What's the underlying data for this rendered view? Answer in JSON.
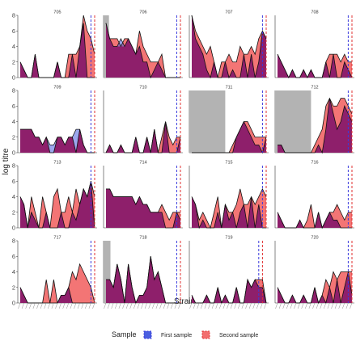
{
  "colors": {
    "first": "#4a5fe0",
    "second": "#f26e6e",
    "overlap": "#8e1f6b",
    "gray": "#b3b3b3",
    "first_line": "#3b3bdd",
    "second_line": "#e03030"
  },
  "chart_data": {
    "type": "area",
    "xlabel": "Strain",
    "ylabel": "log titre",
    "ylim": [
      0,
      8
    ],
    "yticks": [
      0,
      2,
      4,
      6,
      8
    ],
    "legend": {
      "title": "Sample",
      "placement": "bottom",
      "entries": [
        "First sample",
        "Second sample"
      ]
    },
    "n_strains": 21,
    "panels": [
      {
        "id": "705",
        "first": [
          2,
          1,
          0,
          0,
          3,
          0,
          0,
          0,
          0,
          0,
          2,
          0,
          0,
          0,
          3,
          0,
          4,
          7,
          0,
          0,
          0
        ],
        "second": [
          2,
          1,
          0,
          0,
          3,
          0,
          0,
          0,
          0,
          0,
          2,
          0,
          0,
          3,
          3,
          3,
          4,
          8,
          6,
          5,
          3
        ],
        "gray": null,
        "first_vline": 19,
        "second_vline": 20
      },
      {
        "id": "706",
        "first": [
          7,
          5,
          4,
          4,
          5,
          4,
          5,
          4,
          3,
          4,
          2,
          2,
          0,
          1,
          2,
          1,
          0,
          0,
          0,
          0,
          0
        ],
        "second": [
          7,
          5,
          5,
          5,
          4,
          5,
          5,
          4,
          3,
          6,
          4,
          3,
          2,
          2,
          2,
          3,
          0,
          0,
          0,
          0,
          0
        ],
        "gray": [
          0,
          0.8
        ],
        "first_vline": 19,
        "second_vline": 20
      },
      {
        "id": "707",
        "first": [
          8,
          5,
          4,
          3,
          1,
          0,
          2,
          0,
          0,
          2,
          0,
          1,
          0,
          0,
          3,
          0,
          3,
          0,
          2,
          6,
          5
        ],
        "second": [
          8,
          6,
          5,
          4,
          3,
          4,
          2,
          0,
          2,
          2,
          3,
          2,
          2,
          4,
          3,
          3,
          4,
          3,
          5,
          6,
          5
        ],
        "gray": null,
        "first_vline": 19,
        "second_vline": 20
      },
      {
        "id": "708",
        "first": [
          3,
          2,
          1,
          0,
          1,
          0,
          0,
          1,
          0,
          1,
          0,
          0,
          0,
          2,
          0,
          3,
          0,
          0,
          2,
          1,
          0
        ],
        "second": [
          3,
          2,
          1,
          0,
          1,
          0,
          0,
          1,
          0,
          1,
          0,
          0,
          0,
          2,
          3,
          3,
          3,
          2,
          3,
          2,
          2
        ],
        "gray": null,
        "first_vline": 19,
        "second_vline": 20
      },
      {
        "id": "709",
        "first": [
          3,
          3,
          3,
          3,
          2,
          2,
          1,
          2,
          1,
          1,
          2,
          2,
          1,
          2,
          2,
          3,
          3,
          1,
          0,
          0,
          0
        ],
        "second": [
          3,
          3,
          3,
          3,
          2,
          2,
          1,
          2,
          0,
          0,
          2,
          2,
          1,
          2,
          2,
          0,
          3,
          1,
          0,
          0,
          0
        ],
        "gray": null,
        "first_vline": 19,
        "second_vline": 20
      },
      {
        "id": "710",
        "first": [
          0,
          1,
          0,
          0,
          1,
          0,
          0,
          0,
          2,
          0,
          0,
          2,
          0,
          3,
          0,
          0,
          4,
          0,
          0,
          0,
          2
        ],
        "second": [
          0,
          1,
          0,
          0,
          1,
          0,
          0,
          0,
          2,
          0,
          0,
          2,
          0,
          3,
          0,
          2,
          4,
          2,
          1,
          2,
          2
        ],
        "gray": null,
        "first_vline": 19,
        "second_vline": 20
      },
      {
        "id": "711",
        "first": [
          0,
          0,
          0,
          0,
          0,
          0,
          0,
          0,
          0,
          0,
          0,
          0,
          2,
          3,
          4,
          3,
          2,
          1,
          1,
          0,
          2
        ],
        "second": [
          0,
          0,
          0,
          0,
          0,
          0,
          0,
          0,
          0,
          0,
          0,
          1,
          2,
          3,
          4,
          4,
          3,
          2,
          2,
          2,
          2
        ],
        "gray": [
          0,
          9
        ],
        "first_vline": 19,
        "second_vline": 20
      },
      {
        "id": "712",
        "first": [
          1,
          1,
          0,
          0,
          0,
          0,
          0,
          0,
          0,
          0,
          0,
          1,
          0,
          3,
          7,
          5,
          3,
          4,
          6,
          5,
          4
        ],
        "second": [
          1,
          1,
          0,
          0,
          0,
          0,
          0,
          0,
          0,
          0,
          1,
          2,
          3,
          6,
          7,
          6,
          6,
          7,
          7,
          6,
          5
        ],
        "gray": [
          0,
          9
        ],
        "first_vline": 19,
        "second_vline": 20
      },
      {
        "id": "713",
        "first": [
          4,
          3,
          0,
          2,
          1,
          0,
          0,
          2,
          0,
          0,
          0,
          2,
          0,
          0,
          2,
          1,
          3,
          5,
          4,
          6,
          0
        ],
        "second": [
          4,
          3,
          0,
          4,
          2,
          0,
          4,
          2,
          0,
          4,
          5,
          2,
          2,
          4,
          2,
          5,
          3,
          5,
          4,
          6,
          4
        ],
        "gray": null,
        "first_vline": 19,
        "second_vline": 20
      },
      {
        "id": "714",
        "first": [
          5,
          5,
          4,
          4,
          4,
          4,
          4,
          4,
          3,
          4,
          3,
          3,
          2,
          2,
          2,
          2,
          0,
          0,
          0,
          2,
          1
        ],
        "second": [
          5,
          5,
          4,
          4,
          4,
          4,
          4,
          4,
          3,
          4,
          3,
          3,
          2,
          2,
          2,
          3,
          2,
          1,
          2,
          2,
          2
        ],
        "gray": null,
        "first_vline": 19,
        "second_vline": 20
      },
      {
        "id": "715",
        "first": [
          4,
          3,
          0,
          1,
          0,
          0,
          0,
          2,
          0,
          3,
          1,
          2,
          0,
          2,
          3,
          0,
          4,
          0,
          3,
          0,
          0
        ],
        "second": [
          4,
          3,
          1,
          2,
          1,
          0,
          2,
          4,
          0,
          3,
          2,
          2,
          3,
          5,
          3,
          3,
          4,
          3,
          4,
          5,
          4
        ],
        "gray": null,
        "first_vline": 19,
        "second_vline": 20
      },
      {
        "id": "716",
        "first": [
          2,
          1,
          0,
          0,
          0,
          0,
          1,
          0,
          0,
          0,
          0,
          2,
          0,
          1,
          2,
          1,
          1,
          0,
          0,
          0,
          0
        ],
        "second": [
          2,
          1,
          0,
          0,
          0,
          0,
          1,
          0,
          1,
          3,
          0,
          2,
          0,
          1,
          2,
          2,
          3,
          2,
          1,
          2,
          2
        ],
        "gray": null,
        "first_vline": 19,
        "second_vline": 20
      },
      {
        "id": "717",
        "first": [
          2,
          1,
          0,
          0,
          0,
          0,
          0,
          0,
          0,
          0,
          0,
          1,
          1,
          2,
          0,
          0,
          0,
          0,
          0,
          0,
          0
        ],
        "second": [
          2,
          1,
          0,
          0,
          0,
          0,
          0,
          3,
          0,
          3,
          0,
          1,
          1,
          2,
          4,
          3,
          5,
          4,
          3,
          2,
          0
        ],
        "gray": null,
        "first_vline": 19,
        "second_vline": 20
      },
      {
        "id": "718",
        "first": [
          3,
          3,
          2,
          5,
          3,
          0,
          5,
          2,
          0,
          1,
          1,
          2,
          6,
          3,
          4,
          2,
          0,
          0,
          0,
          0,
          0
        ],
        "second": [
          3,
          3,
          2,
          5,
          3,
          0,
          5,
          2,
          0,
          1,
          1,
          2,
          6,
          3,
          4,
          2,
          0,
          0,
          0,
          0,
          0
        ],
        "gray": [
          0,
          1.2
        ],
        "first_vline": 19,
        "second_vline": 20
      },
      {
        "id": "719",
        "first": [
          1,
          0,
          0,
          0,
          1,
          0,
          0,
          2,
          0,
          1,
          0,
          0,
          2,
          0,
          0,
          3,
          2,
          3,
          2,
          2,
          0
        ],
        "second": [
          1,
          0,
          0,
          0,
          1,
          0,
          0,
          2,
          0,
          1,
          0,
          0,
          2,
          0,
          0,
          3,
          2,
          3,
          3,
          3,
          0
        ],
        "gray": null,
        "first_vline": 18,
        "second_vline": 19
      },
      {
        "id": "720",
        "first": [
          2,
          1,
          0,
          0,
          1,
          0,
          0,
          1,
          0,
          0,
          2,
          0,
          1,
          0,
          2,
          0,
          3,
          0,
          2,
          4,
          1
        ],
        "second": [
          2,
          1,
          0,
          0,
          1,
          0,
          0,
          1,
          0,
          0,
          2,
          0,
          1,
          3,
          2,
          4,
          3,
          4,
          4,
          4,
          4
        ],
        "gray": null,
        "first_vline": 19,
        "second_vline": 20
      }
    ]
  }
}
